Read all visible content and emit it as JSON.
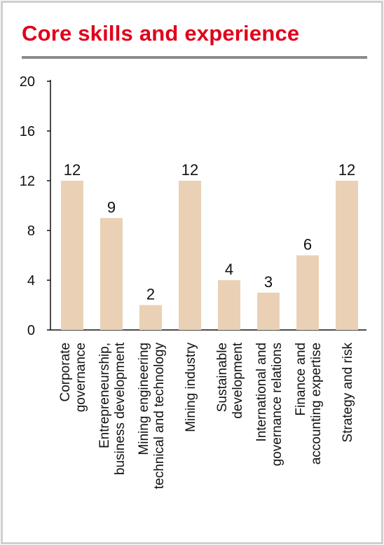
{
  "title": "Core skills and experience",
  "colors": {
    "title": "#e0001b",
    "bar": "#ead1b5",
    "rule": "#8c8c8c",
    "border": "#cfcfcf"
  },
  "chart_data": {
    "type": "bar",
    "title": "Core skills and experience",
    "categories": [
      [
        "Corporate",
        "governance"
      ],
      [
        "Entrepreneurship,",
        "business development"
      ],
      [
        "Mining engineering",
        "technical and technology"
      ],
      [
        "Mining industry"
      ],
      [
        "Sustainable",
        "development"
      ],
      [
        "International and",
        "governance relations"
      ],
      [
        "Finance and",
        "accounting expertise"
      ],
      [
        "Strategy and risk"
      ]
    ],
    "values": [
      12,
      9,
      2,
      12,
      4,
      3,
      6,
      12
    ],
    "ylim": [
      0,
      20
    ],
    "yticks": [
      0,
      4,
      8,
      12,
      16,
      20
    ],
    "data_labels": true,
    "grid": false,
    "xlabel": "",
    "ylabel": ""
  }
}
